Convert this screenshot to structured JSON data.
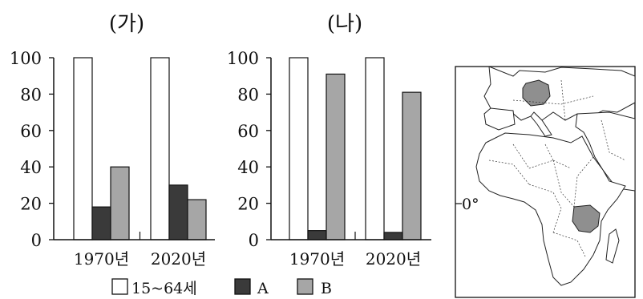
{
  "chart_data": [
    {
      "type": "bar",
      "title": "(가)",
      "categories": [
        "1970년",
        "2020년"
      ],
      "series": [
        {
          "name": "15~64세",
          "values": [
            100,
            100
          ]
        },
        {
          "name": "A",
          "values": [
            18,
            30
          ]
        },
        {
          "name": "B",
          "values": [
            40,
            22
          ]
        }
      ],
      "ylim": [
        0,
        100
      ],
      "yticks": [
        "100",
        "80",
        "60",
        "40",
        "20",
        "0"
      ]
    },
    {
      "type": "bar",
      "title": "(나)",
      "categories": [
        "1970년",
        "2020년"
      ],
      "series": [
        {
          "name": "15~64세",
          "values": [
            100,
            100
          ]
        },
        {
          "name": "A",
          "values": [
            5,
            4
          ]
        },
        {
          "name": "B",
          "values": [
            91,
            81
          ]
        }
      ],
      "ylim": [
        0,
        100
      ],
      "yticks": [
        "100",
        "80",
        "60",
        "40",
        "20",
        "0"
      ]
    }
  ],
  "legend": {
    "items": [
      {
        "label": "15~64세",
        "color": "#ffffff"
      },
      {
        "label": "A",
        "color": "#3a3a3a"
      },
      {
        "label": "B",
        "color": "#a6a6a6"
      }
    ]
  },
  "map": {
    "equator_label": "0°",
    "land_color": "#ffffff",
    "highlight_color": "#8f8f8f"
  }
}
